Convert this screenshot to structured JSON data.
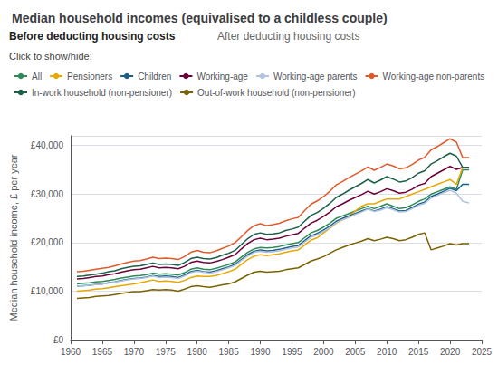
{
  "chart_data": {
    "type": "line",
    "title": "Median household incomes (equivalised to a childless couple)",
    "ylabel": "Median household income, £ per year",
    "annotations": [
      "Before deducting housing costs",
      "After deducting housing costs",
      "Click to show/hide:"
    ],
    "x": [
      1961,
      1962,
      1963,
      1964,
      1965,
      1966,
      1967,
      1968,
      1969,
      1970,
      1971,
      1972,
      1973,
      1974,
      1975,
      1976,
      1977,
      1978,
      1979,
      1980,
      1981,
      1982,
      1983,
      1984,
      1985,
      1986,
      1987,
      1988,
      1989,
      1990,
      1991,
      1992,
      1993,
      1994,
      1995,
      1996,
      1997,
      1998,
      1999,
      2000,
      2001,
      2002,
      2003,
      2004,
      2005,
      2006,
      2007,
      2008,
      2009,
      2010,
      2011,
      2012,
      2013,
      2014,
      2015,
      2016,
      2017,
      2018,
      2019,
      2020,
      2021,
      2022,
      2023
    ],
    "xlim": [
      1960,
      2025
    ],
    "xticks": [
      1960,
      1965,
      1970,
      1975,
      1980,
      1985,
      1990,
      1995,
      2000,
      2005,
      2010,
      2015,
      2020,
      2025
    ],
    "ylim": [
      0,
      42000
    ],
    "yticks": [
      {
        "value": 0,
        "label": "£0"
      },
      {
        "value": 10000,
        "label": "£10,000"
      },
      {
        "value": 20000,
        "label": "£20,000"
      },
      {
        "value": 30000,
        "label": "£30,000"
      },
      {
        "value": 40000,
        "label": "£40,000"
      }
    ],
    "grid": true,
    "legend": "top",
    "series": [
      {
        "name": "All",
        "color": "#2e8b57",
        "values": [
          11500,
          11600,
          11700,
          11900,
          12000,
          12200,
          12400,
          12700,
          12900,
          13100,
          13200,
          13400,
          13700,
          13500,
          13600,
          13500,
          13300,
          13800,
          14500,
          14800,
          14500,
          14400,
          14700,
          15100,
          15500,
          16000,
          17000,
          18000,
          18700,
          19000,
          18900,
          19000,
          19200,
          19500,
          19800,
          20000,
          21000,
          22000,
          22500,
          23200,
          24000,
          25000,
          25500,
          26000,
          26500,
          27000,
          27500,
          27000,
          27500,
          28000,
          27500,
          27000,
          27200,
          27800,
          28500,
          29000,
          30000,
          30500,
          31000,
          31500,
          31000,
          35000,
          35000
        ]
      },
      {
        "name": "Pensioners",
        "color": "#e8a800",
        "values": [
          10000,
          10100,
          10200,
          10400,
          10500,
          10700,
          10900,
          11100,
          11300,
          11500,
          11700,
          12000,
          12300,
          12000,
          12100,
          12000,
          11800,
          12200,
          12800,
          13100,
          13000,
          13000,
          13200,
          13600,
          14000,
          14500,
          15500,
          16500,
          17200,
          17500,
          17300,
          17500,
          17700,
          18000,
          18300,
          18500,
          19500,
          20500,
          21000,
          22000,
          23000,
          24000,
          24700,
          25500,
          26500,
          27500,
          28000,
          28000,
          28500,
          29000,
          29000,
          29000,
          29500,
          30000,
          30500,
          31000,
          31500,
          32000,
          32500,
          33000,
          32000,
          35500,
          35500
        ]
      },
      {
        "name": "Children",
        "color": "#1b5e8a",
        "values": [
          11000,
          11100,
          11200,
          11400,
          11500,
          11700,
          11900,
          12200,
          12400,
          12600,
          12700,
          12900,
          13200,
          13000,
          13100,
          13000,
          12800,
          13300,
          14000,
          14300,
          14000,
          13900,
          14200,
          14600,
          15000,
          15500,
          16500,
          17500,
          18200,
          18500,
          18300,
          18400,
          18600,
          18900,
          19200,
          19400,
          20400,
          21400,
          21900,
          22600,
          23400,
          24400,
          25000,
          25500,
          26000,
          26500,
          27000,
          26500,
          26900,
          27400,
          27000,
          26500,
          26600,
          27200,
          27900,
          28400,
          29500,
          30000,
          30600,
          31200,
          30700,
          32000,
          32000
        ]
      },
      {
        "name": "Working-age",
        "color": "#6b003a",
        "values": [
          12500,
          12600,
          12800,
          13000,
          13100,
          13400,
          13600,
          13900,
          14200,
          14400,
          14500,
          14800,
          15100,
          14800,
          14900,
          14800,
          14600,
          15100,
          15900,
          16200,
          15900,
          15800,
          16100,
          16500,
          17000,
          17500,
          18700,
          19800,
          20600,
          20900,
          20600,
          20700,
          20900,
          21300,
          21600,
          21900,
          23000,
          24000,
          24600,
          25400,
          26300,
          27400,
          28000,
          28700,
          29300,
          29900,
          30600,
          30000,
          30500,
          31100,
          30700,
          30200,
          30400,
          31000,
          31800,
          32200,
          33600,
          34300,
          35000,
          35700,
          35100,
          35500,
          35500
        ]
      },
      {
        "name": "Working-age parents",
        "color": "#b0c4de",
        "values": [
          11000,
          11100,
          11200,
          11350,
          11450,
          11650,
          11850,
          12100,
          12300,
          12500,
          12600,
          12800,
          13100,
          12800,
          12900,
          12800,
          12600,
          13100,
          13800,
          14100,
          13900,
          13700,
          14000,
          14400,
          14800,
          15300,
          16300,
          17200,
          18000,
          18200,
          18000,
          18100,
          18300,
          18600,
          18900,
          19100,
          20100,
          21100,
          21600,
          22300,
          23100,
          24100,
          24700,
          25200,
          25800,
          26300,
          26900,
          26400,
          26700,
          27200,
          26800,
          26300,
          26400,
          27000,
          27700,
          28100,
          29200,
          29700,
          30300,
          30800,
          30200,
          28500,
          28200
        ]
      },
      {
        "name": "Working-age non-parents",
        "color": "#e05a2b",
        "values": [
          14000,
          14100,
          14300,
          14500,
          14700,
          14900,
          15200,
          15600,
          15900,
          16200,
          16300,
          16600,
          17000,
          16700,
          16800,
          16700,
          16500,
          17100,
          18000,
          18400,
          18000,
          17900,
          18300,
          18800,
          19300,
          20000,
          21200,
          22500,
          23500,
          23900,
          23500,
          23700,
          24000,
          24500,
          24900,
          25200,
          26600,
          27900,
          28600,
          29500,
          30600,
          31900,
          32600,
          33400,
          34100,
          34800,
          35600,
          34900,
          35500,
          36200,
          35800,
          35200,
          35400,
          36100,
          37000,
          37600,
          39100,
          39800,
          40600,
          41400,
          40700,
          37500,
          37500
        ]
      },
      {
        "name": "In-work household (non-pensioner)",
        "color": "#1b5e4a",
        "values": [
          13000,
          13100,
          13300,
          13500,
          13700,
          14000,
          14200,
          14600,
          14900,
          15100,
          15200,
          15500,
          15800,
          15500,
          15600,
          15500,
          15300,
          15900,
          16700,
          17000,
          16700,
          16600,
          16900,
          17400,
          17800,
          18400,
          19600,
          20800,
          21700,
          22000,
          21700,
          21800,
          22000,
          22500,
          22800,
          23200,
          24400,
          25600,
          26200,
          27100,
          28100,
          29300,
          30000,
          30800,
          31500,
          32200,
          33000,
          32300,
          32900,
          33600,
          33100,
          32500,
          32700,
          33400,
          34300,
          34800,
          36200,
          36900,
          37700,
          38400,
          37800,
          35500,
          35500
        ]
      },
      {
        "name": "Out-of-work household (non-pensioner)",
        "color": "#7a6200",
        "values": [
          8500,
          8600,
          8700,
          8900,
          9000,
          9100,
          9300,
          9500,
          9700,
          9900,
          9900,
          10100,
          10300,
          10200,
          10300,
          10200,
          10000,
          10400,
          10900,
          11100,
          10900,
          10800,
          11000,
          11300,
          11500,
          11900,
          12600,
          13300,
          13900,
          14100,
          13900,
          14000,
          14100,
          14400,
          14600,
          14800,
          15500,
          16200,
          16600,
          17100,
          17800,
          18500,
          19000,
          19500,
          19900,
          20300,
          20800,
          20400,
          20700,
          21100,
          20800,
          20400,
          20600,
          21100,
          21700,
          22000,
          18500,
          18900,
          19300,
          19800,
          19500,
          19800,
          19800
        ]
      }
    ]
  }
}
